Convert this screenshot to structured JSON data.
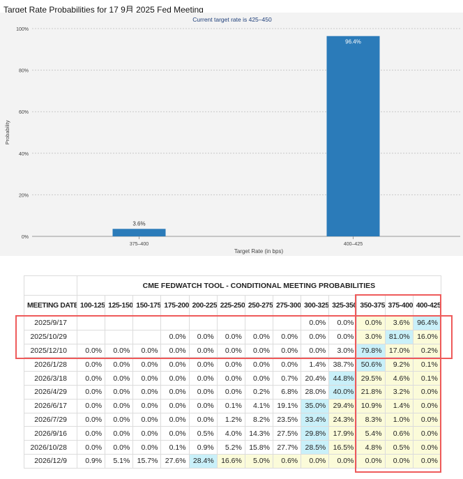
{
  "page_title": "Target Rate Probabilities for 17 9月 2025 Fed Meeting",
  "chart_data": {
    "type": "bar",
    "title": "Target Rate Probabilities for 17 9月 2025 Fed Meeting",
    "subtitle": "Current target rate is 425–450",
    "xlabel": "Target Rate (in bps)",
    "ylabel": "Probability",
    "categories": [
      "375–400",
      "400–425"
    ],
    "values": [
      3.6,
      96.4
    ],
    "data_labels": [
      "3.6%",
      "96.4%"
    ],
    "ylim": [
      0,
      100
    ],
    "yticks": [
      "0%",
      "20%",
      "40%",
      "60%",
      "80%",
      "100%"
    ],
    "grid": true,
    "bar_color": "#2b7bb9"
  },
  "table": {
    "banner": "CME FEDWATCH TOOL - CONDITIONAL MEETING PROBABILITIES",
    "date_header": "MEETING DATE",
    "columns": [
      "100-125",
      "125-150",
      "150-175",
      "175-200",
      "200-225",
      "225-250",
      "250-275",
      "275-300",
      "300-325",
      "325-350",
      "350-375",
      "375-400",
      "400-425"
    ],
    "rows": [
      {
        "date": "2025/9/17",
        "cells": [
          "",
          "",
          "",
          "",
          "",
          "",
          "",
          "",
          "0.0%",
          "0.0%",
          "0.0%",
          "3.6%",
          "96.4%"
        ]
      },
      {
        "date": "2025/10/29",
        "cells": [
          "",
          "",
          "",
          "0.0%",
          "0.0%",
          "0.0%",
          "0.0%",
          "0.0%",
          "0.0%",
          "0.0%",
          "3.0%",
          "81.0%",
          "16.0%"
        ]
      },
      {
        "date": "2025/12/10",
        "cells": [
          "0.0%",
          "0.0%",
          "0.0%",
          "0.0%",
          "0.0%",
          "0.0%",
          "0.0%",
          "0.0%",
          "0.0%",
          "3.0%",
          "79.8%",
          "17.0%",
          "0.2%"
        ]
      },
      {
        "date": "2026/1/28",
        "cells": [
          "0.0%",
          "0.0%",
          "0.0%",
          "0.0%",
          "0.0%",
          "0.0%",
          "0.0%",
          "0.0%",
          "1.4%",
          "38.7%",
          "50.6%",
          "9.2%",
          "0.1%"
        ]
      },
      {
        "date": "2026/3/18",
        "cells": [
          "0.0%",
          "0.0%",
          "0.0%",
          "0.0%",
          "0.0%",
          "0.0%",
          "0.0%",
          "0.7%",
          "20.4%",
          "44.8%",
          "29.5%",
          "4.6%",
          "0.1%"
        ]
      },
      {
        "date": "2026/4/29",
        "cells": [
          "0.0%",
          "0.0%",
          "0.0%",
          "0.0%",
          "0.0%",
          "0.0%",
          "0.2%",
          "6.8%",
          "28.0%",
          "40.0%",
          "21.8%",
          "3.2%",
          "0.0%"
        ]
      },
      {
        "date": "2026/6/17",
        "cells": [
          "0.0%",
          "0.0%",
          "0.0%",
          "0.0%",
          "0.0%",
          "0.1%",
          "4.1%",
          "19.1%",
          "35.0%",
          "29.4%",
          "10.9%",
          "1.4%",
          "0.0%"
        ]
      },
      {
        "date": "2026/7/29",
        "cells": [
          "0.0%",
          "0.0%",
          "0.0%",
          "0.0%",
          "0.0%",
          "1.2%",
          "8.2%",
          "23.5%",
          "33.4%",
          "24.3%",
          "8.3%",
          "1.0%",
          "0.0%"
        ]
      },
      {
        "date": "2026/9/16",
        "cells": [
          "0.0%",
          "0.0%",
          "0.0%",
          "0.0%",
          "0.5%",
          "4.0%",
          "14.3%",
          "27.5%",
          "29.8%",
          "17.9%",
          "5.4%",
          "0.6%",
          "0.0%"
        ]
      },
      {
        "date": "2026/10/28",
        "cells": [
          "0.0%",
          "0.0%",
          "0.0%",
          "0.1%",
          "0.9%",
          "5.2%",
          "15.8%",
          "27.7%",
          "28.5%",
          "16.5%",
          "4.8%",
          "0.5%",
          "0.0%"
        ]
      },
      {
        "date": "2026/12/9",
        "cells": [
          "0.9%",
          "5.1%",
          "15.7%",
          "27.6%",
          "28.4%",
          "16.6%",
          "5.0%",
          "0.6%",
          "0.0%",
          "0.0%",
          "0.0%",
          "0.0%",
          "0.0%"
        ]
      }
    ],
    "highlights": [
      {
        "row": 0,
        "blue": [
          12
        ],
        "yellow": [
          10,
          11
        ]
      },
      {
        "row": 1,
        "blue": [
          11
        ],
        "yellow": [
          10,
          12
        ]
      },
      {
        "row": 2,
        "blue": [
          10
        ],
        "yellow": [
          11,
          12
        ]
      },
      {
        "row": 3,
        "blue": [
          10
        ],
        "yellow": [
          11,
          12
        ]
      },
      {
        "row": 4,
        "blue": [
          9
        ],
        "yellow": [
          10,
          11,
          12
        ]
      },
      {
        "row": 5,
        "blue": [
          9
        ],
        "yellow": [
          10,
          11,
          12
        ]
      },
      {
        "row": 6,
        "blue": [
          8
        ],
        "yellow": [
          9,
          10,
          11,
          12
        ]
      },
      {
        "row": 7,
        "blue": [
          8
        ],
        "yellow": [
          9,
          10,
          11,
          12
        ]
      },
      {
        "row": 8,
        "blue": [
          8
        ],
        "yellow": [
          9,
          10,
          11,
          12
        ]
      },
      {
        "row": 9,
        "blue": [
          8
        ],
        "yellow": [
          9,
          10,
          11,
          12
        ]
      },
      {
        "row": 10,
        "blue": [
          4
        ],
        "yellow": [
          5,
          6,
          7,
          8,
          9,
          10,
          11,
          12
        ]
      }
    ],
    "colors": {
      "blue": "#c9f0f9",
      "yellow": "#fbfbd9",
      "annotation": "#ee5a5a"
    }
  }
}
